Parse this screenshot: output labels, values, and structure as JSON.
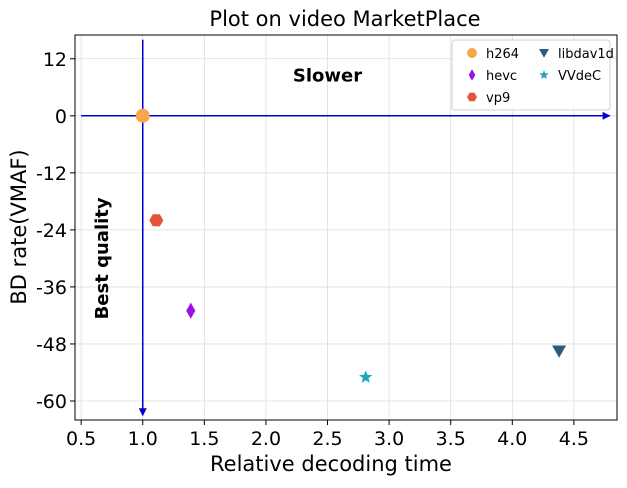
{
  "chart_data": {
    "type": "scatter",
    "title": "Plot on video MarketPlace",
    "xlabel": "Relative decoding time",
    "ylabel": "BD rate(VMAF)",
    "xlim": [
      0.45,
      4.85
    ],
    "ylim": [
      -64,
      17
    ],
    "xticks": [
      0.5,
      1.0,
      1.5,
      2.0,
      2.5,
      3.0,
      3.5,
      4.0,
      4.5
    ],
    "xtick_labels": [
      "0.5",
      "1.0",
      "1.5",
      "2.0",
      "2.5",
      "3.0",
      "3.5",
      "4.0",
      "4.5"
    ],
    "yticks": [
      12,
      0,
      -12,
      -24,
      -36,
      -48,
      -60
    ],
    "ytick_labels": [
      "12",
      "0",
      "-12",
      "-24",
      "-36",
      "-48",
      "-60"
    ],
    "grid": true,
    "legend_position": "top-right",
    "series": [
      {
        "name": "h264",
        "marker": "circle",
        "color": "#f4a84a",
        "x": 1.0,
        "y": 0.0
      },
      {
        "name": "hevc",
        "marker": "diamond",
        "color": "#9b0fe8",
        "x": 1.39,
        "y": -41.0
      },
      {
        "name": "vp9",
        "marker": "hexagon",
        "color": "#e45537",
        "x": 1.11,
        "y": -22.0
      },
      {
        "name": "libdav1d",
        "marker": "triangle-down",
        "color": "#2d5a7b",
        "x": 4.38,
        "y": -49.5
      },
      {
        "name": "VVdeC",
        "marker": "star",
        "color": "#1fa9b8",
        "x": 2.81,
        "y": -55.0
      }
    ],
    "annotations": [
      {
        "text": "Slower",
        "x": 2.5,
        "y": 8.5,
        "orientation": "horizontal"
      },
      {
        "text": "Best quality",
        "x": 0.67,
        "y": -30,
        "orientation": "vertical"
      }
    ],
    "arrows": [
      {
        "from": [
          0.5,
          0
        ],
        "to": [
          4.79,
          0
        ],
        "color": "#0000cc"
      },
      {
        "from": [
          1.0,
          16
        ],
        "to": [
          1.0,
          -63
        ],
        "color": "#0000cc"
      }
    ]
  }
}
